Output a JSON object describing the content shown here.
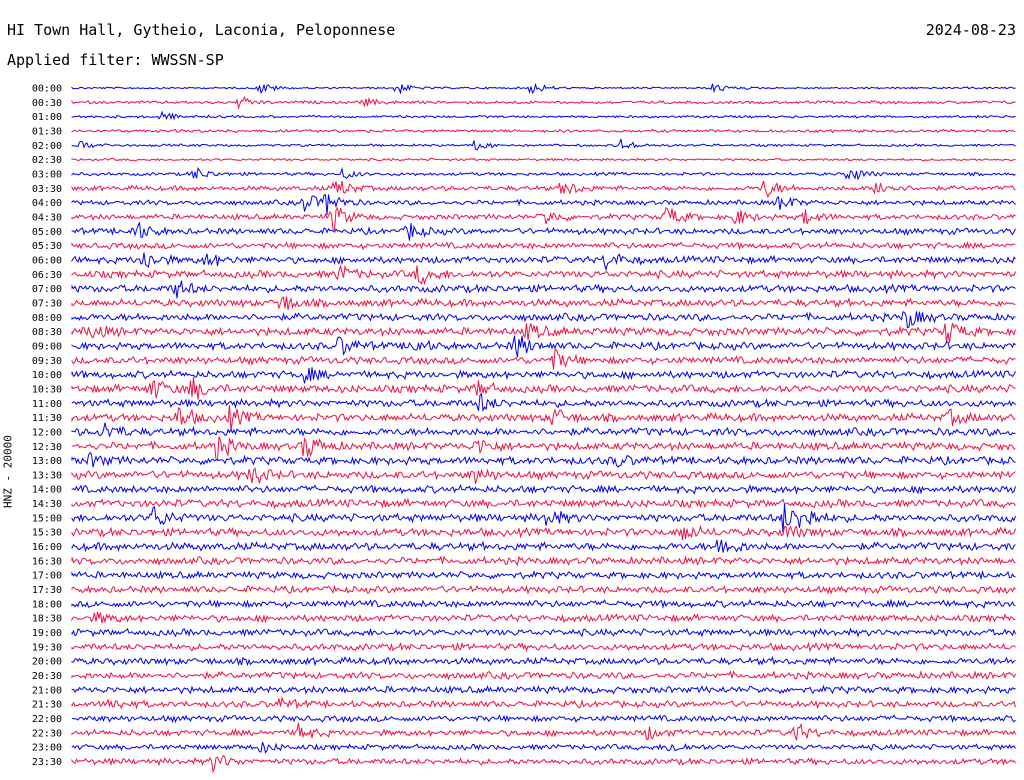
{
  "header": {
    "station": "HI Town Hall, Gytheio, Laconia, Peloponnese",
    "date": "2024-08-23",
    "filter": "Applied filter: WWSSN-SP"
  },
  "chart_data": {
    "type": "line",
    "ylabel": "HNZ - 20000",
    "rows": [
      "00:00",
      "00:30",
      "01:00",
      "01:30",
      "02:00",
      "02:30",
      "03:00",
      "03:30",
      "04:00",
      "04:30",
      "05:00",
      "05:30",
      "06:00",
      "06:30",
      "07:00",
      "07:30",
      "08:00",
      "08:30",
      "09:00",
      "09:30",
      "10:00",
      "10:30",
      "11:00",
      "11:30",
      "12:00",
      "12:30",
      "13:00",
      "13:30",
      "14:00",
      "14:30",
      "15:00",
      "15:30",
      "16:00",
      "16:30",
      "17:00",
      "17:30",
      "18:00",
      "18:30",
      "19:00",
      "19:30",
      "20:00",
      "20:30",
      "21:00",
      "21:30",
      "22:00",
      "22:30",
      "23:00",
      "23:30"
    ],
    "series_colors": [
      "#0000ee",
      "#ee1144"
    ],
    "noise_level": [
      0.8,
      1.2,
      1.0,
      1.2,
      1.0,
      1.0,
      1.3,
      2.0,
      2.0,
      2.2,
      2.5,
      2.5,
      2.8,
      3.0,
      3.0,
      3.0,
      3.0,
      3.2,
      3.0,
      3.0,
      3.0,
      3.2,
      3.0,
      3.2,
      3.2,
      3.2,
      3.2,
      3.2,
      3.0,
      3.2,
      3.2,
      3.2,
      3.2,
      3.0,
      2.8,
      2.8,
      2.8,
      2.8,
      2.8,
      2.8,
      2.8,
      2.8,
      2.8,
      2.6,
      2.5,
      2.5,
      2.2,
      2.5
    ],
    "events": [
      {
        "row": 0,
        "minute": 6.0,
        "amp": 6
      },
      {
        "row": 0,
        "minute": 10.3,
        "amp": 6
      },
      {
        "row": 0,
        "minute": 14.6,
        "amp": 6
      },
      {
        "row": 0,
        "minute": 20.4,
        "amp": 5
      },
      {
        "row": 1,
        "minute": 5.3,
        "amp": 6
      },
      {
        "row": 1,
        "minute": 9.3,
        "amp": 4
      },
      {
        "row": 2,
        "minute": 2.8,
        "amp": 5
      },
      {
        "row": 4,
        "minute": 0.3,
        "amp": 4
      },
      {
        "row": 4,
        "minute": 12.8,
        "amp": 5
      },
      {
        "row": 4,
        "minute": 17.4,
        "amp": 7
      },
      {
        "row": 6,
        "minute": 3.9,
        "amp": 7
      },
      {
        "row": 6,
        "minute": 8.6,
        "amp": 5
      },
      {
        "row": 6,
        "minute": 24.7,
        "amp": 9
      },
      {
        "row": 7,
        "minute": 8.4,
        "amp": 10
      },
      {
        "row": 7,
        "minute": 15.6,
        "amp": 9
      },
      {
        "row": 7,
        "minute": 22.0,
        "amp": 10
      },
      {
        "row": 7,
        "minute": 25.6,
        "amp": 9
      },
      {
        "row": 8,
        "minute": 7.4,
        "amp": 10
      },
      {
        "row": 8,
        "minute": 8.1,
        "amp": 11
      },
      {
        "row": 8,
        "minute": 22.5,
        "amp": 8
      },
      {
        "row": 9,
        "minute": 8.3,
        "amp": 13
      },
      {
        "row": 9,
        "minute": 15.0,
        "amp": 8
      },
      {
        "row": 9,
        "minute": 18.9,
        "amp": 11
      },
      {
        "row": 9,
        "minute": 21.1,
        "amp": 8
      },
      {
        "row": 9,
        "minute": 23.3,
        "amp": 7
      },
      {
        "row": 10,
        "minute": 2.0,
        "amp": 10
      },
      {
        "row": 10,
        "minute": 10.7,
        "amp": 8
      },
      {
        "row": 12,
        "minute": 2.3,
        "amp": 10
      },
      {
        "row": 12,
        "minute": 4.3,
        "amp": 7
      },
      {
        "row": 12,
        "minute": 17.0,
        "amp": 10
      },
      {
        "row": 13,
        "minute": 8.5,
        "amp": 8
      },
      {
        "row": 13,
        "minute": 11.0,
        "amp": 10
      },
      {
        "row": 14,
        "minute": 3.3,
        "amp": 9
      },
      {
        "row": 15,
        "minute": 6.6,
        "amp": 10
      },
      {
        "row": 16,
        "minute": 26.5,
        "amp": 11
      },
      {
        "row": 17,
        "minute": 0.6,
        "amp": 7
      },
      {
        "row": 17,
        "minute": 14.5,
        "amp": 8
      },
      {
        "row": 17,
        "minute": 27.8,
        "amp": 12
      },
      {
        "row": 18,
        "minute": 8.5,
        "amp": 9
      },
      {
        "row": 18,
        "minute": 10.8,
        "amp": 7
      },
      {
        "row": 18,
        "minute": 14.1,
        "amp": 13
      },
      {
        "row": 19,
        "minute": 15.3,
        "amp": 10
      },
      {
        "row": 20,
        "minute": 7.3,
        "amp": 9
      },
      {
        "row": 21,
        "minute": 2.5,
        "amp": 11
      },
      {
        "row": 21,
        "minute": 3.8,
        "amp": 12
      },
      {
        "row": 21,
        "minute": 12.9,
        "amp": 7
      },
      {
        "row": 22,
        "minute": 12.9,
        "amp": 10
      },
      {
        "row": 23,
        "minute": 3.4,
        "amp": 11
      },
      {
        "row": 23,
        "minute": 5.0,
        "amp": 10
      },
      {
        "row": 23,
        "minute": 15.3,
        "amp": 9
      },
      {
        "row": 23,
        "minute": 27.9,
        "amp": 7
      },
      {
        "row": 24,
        "minute": 1.0,
        "amp": 9
      },
      {
        "row": 25,
        "minute": 4.6,
        "amp": 12
      },
      {
        "row": 25,
        "minute": 7.4,
        "amp": 13
      },
      {
        "row": 25,
        "minute": 12.9,
        "amp": 8
      },
      {
        "row": 26,
        "minute": 0.6,
        "amp": 6
      },
      {
        "row": 26,
        "minute": 17.3,
        "amp": 5
      },
      {
        "row": 27,
        "minute": 5.7,
        "amp": 10
      },
      {
        "row": 27,
        "minute": 12.8,
        "amp": 7
      },
      {
        "row": 30,
        "minute": 2.6,
        "amp": 11
      },
      {
        "row": 30,
        "minute": 15.1,
        "amp": 9
      },
      {
        "row": 30,
        "minute": 22.6,
        "amp": 14
      },
      {
        "row": 30,
        "minute": 23.2,
        "amp": 12
      },
      {
        "row": 31,
        "minute": 19.4,
        "amp": 9
      },
      {
        "row": 31,
        "minute": 22.7,
        "amp": 7
      },
      {
        "row": 32,
        "minute": 20.6,
        "amp": 11
      },
      {
        "row": 37,
        "minute": 0.8,
        "amp": 5
      },
      {
        "row": 43,
        "minute": 1.2,
        "amp": 6
      },
      {
        "row": 43,
        "minute": 6.6,
        "amp": 5
      },
      {
        "row": 45,
        "minute": 7.2,
        "amp": 8
      },
      {
        "row": 45,
        "minute": 18.3,
        "amp": 6
      },
      {
        "row": 45,
        "minute": 23.0,
        "amp": 9
      },
      {
        "row": 46,
        "minute": 6.0,
        "amp": 5
      },
      {
        "row": 46,
        "minute": 19.0,
        "amp": 5
      },
      {
        "row": 47,
        "minute": 4.5,
        "amp": 9
      }
    ]
  }
}
